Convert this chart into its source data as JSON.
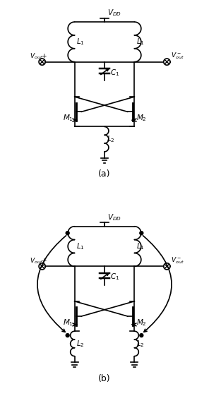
{
  "background_color": "#ffffff",
  "line_color": "#000000",
  "lw": 1.2,
  "fig_w": 2.96,
  "fig_h": 5.78,
  "dpi": 100
}
